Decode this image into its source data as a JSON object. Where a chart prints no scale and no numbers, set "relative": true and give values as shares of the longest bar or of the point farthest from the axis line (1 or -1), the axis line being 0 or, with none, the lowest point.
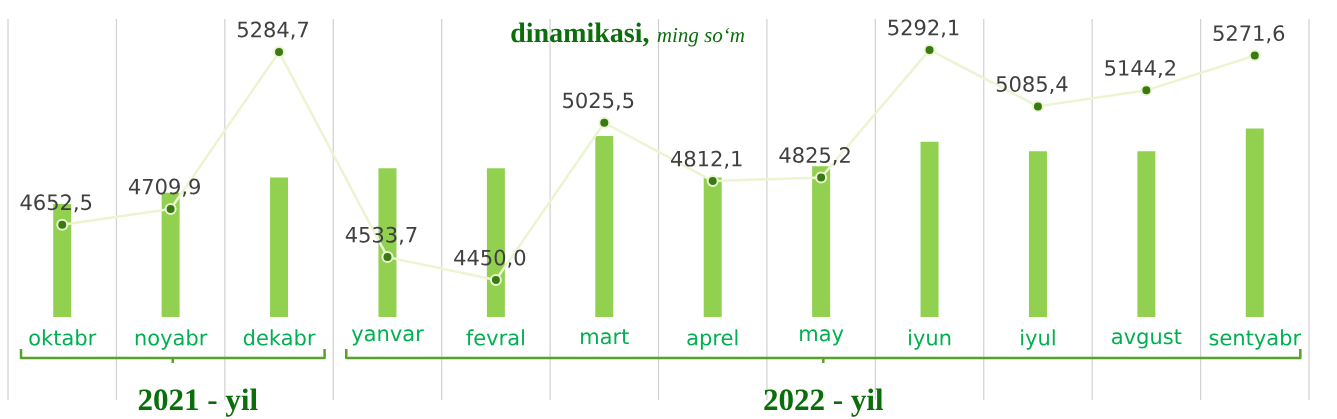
{
  "chart_data": [
    {
      "type": "bar",
      "title": "dinamikasi,",
      "subtitle": "ming so‘m",
      "relative": true,
      "grid": "x",
      "tick_labels": "x",
      "color": "#92d050",
      "categories": [
        "oktabr",
        "noyabr",
        "dekabr",
        "yanvar",
        "fevral",
        "mart",
        "aprel",
        "may",
        "iyun",
        "iyul",
        "avgust",
        "sentyabr"
      ],
      "values": [
        0.6,
        0.66,
        0.74,
        0.79,
        0.79,
        0.96,
        0.74,
        0.8,
        0.93,
        0.88,
        0.88,
        1
      ],
      "annotations": [
        "2021 - yil",
        "2022 - yil"
      ]
    },
    {
      "type": "line",
      "tick_labels": false,
      "marker": "circle",
      "color": "#ebf5d2",
      "categories": [
        null,
        null,
        null,
        null,
        null,
        null,
        null,
        null,
        null,
        null,
        null,
        null
      ],
      "values": [
        4652.5,
        4709.9,
        5284.7,
        4533.7,
        4450.0,
        5025.5,
        4812.1,
        4825.2,
        5292.1,
        5085.4,
        5144.2,
        5271.6
      ],
      "value_labels": [
        "4652,5",
        "4709,9",
        "5284,7",
        "4533,7",
        "4450,0",
        "5025,5",
        "4812,1",
        "4825,2",
        "5292,1",
        "5085,4",
        "5144,2",
        "5271,6"
      ]
    }
  ]
}
